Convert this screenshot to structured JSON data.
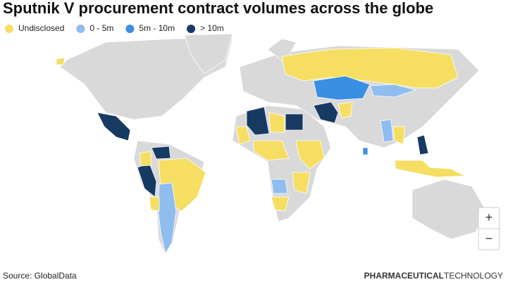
{
  "header": {
    "title": "Sputnik V procurement contract volumes across the globe"
  },
  "legend": [
    {
      "label": "Undisclosed",
      "color": "#f5de62"
    },
    {
      "label": "0 - 5m",
      "color": "#8fbdef"
    },
    {
      "label": "5m - 10m",
      "color": "#3a8fe3"
    },
    {
      "label": "> 10m",
      "color": "#173a63"
    }
  ],
  "zoom": {
    "in": "+",
    "out": "−"
  },
  "footer": {
    "source": "Source: GlobalData",
    "brand_bold": "PHARMACEUTICAL",
    "brand_light": "TECHNOLOGY"
  }
}
